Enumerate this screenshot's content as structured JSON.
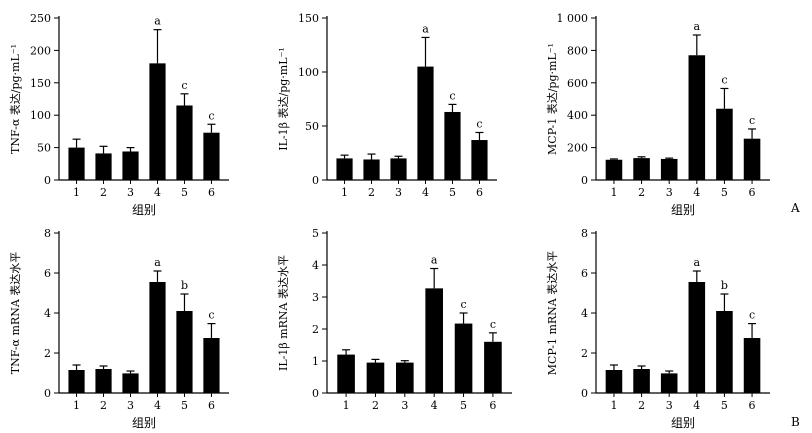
{
  "panel_labels": [
    "A",
    "B"
  ],
  "chart_data": [
    {
      "type": "bar",
      "categories": [
        "1",
        "2",
        "3",
        "4",
        "5",
        "6"
      ],
      "values": [
        50,
        41,
        44,
        180,
        115,
        73
      ],
      "errors": [
        13,
        11,
        6,
        52,
        18,
        13
      ],
      "significance": [
        "",
        "",
        "",
        "a",
        "c",
        "c"
      ],
      "ylabel": "TNF-α 表达/pg·mL⁻¹",
      "xlabel": "组别",
      "ylim": [
        0,
        250
      ],
      "yticks": [
        0,
        50,
        100,
        150,
        200,
        250
      ]
    },
    {
      "type": "bar",
      "categories": [
        "1",
        "2",
        "3",
        "4",
        "5",
        "6"
      ],
      "values": [
        20,
        19,
        20,
        105,
        63,
        37
      ],
      "errors": [
        3,
        5,
        2,
        27,
        7,
        7
      ],
      "significance": [
        "",
        "",
        "",
        "a",
        "c",
        "c"
      ],
      "ylabel": "IL-1β 表达/pg·mL⁻¹",
      "xlabel": "",
      "ylim": [
        0,
        150
      ],
      "yticks": [
        0,
        50,
        100,
        150
      ]
    },
    {
      "type": "bar",
      "categories": [
        "1",
        "2",
        "3",
        "4",
        "5",
        "6"
      ],
      "values": [
        125,
        135,
        130,
        770,
        440,
        255
      ],
      "errors": [
        5,
        8,
        5,
        125,
        125,
        60
      ],
      "significance": [
        "",
        "",
        "",
        "a",
        "c",
        "c"
      ],
      "ylabel": "MCP-1 表达/pg·mL⁻¹",
      "xlabel": "组别",
      "ylim": [
        0,
        1000
      ],
      "yticks": [
        0,
        200,
        400,
        600,
        800,
        "1 000"
      ]
    },
    {
      "type": "bar",
      "categories": [
        "1",
        "2",
        "3",
        "4",
        "5",
        "6"
      ],
      "values": [
        1.15,
        1.2,
        0.98,
        5.55,
        4.1,
        2.75
      ],
      "errors": [
        0.25,
        0.15,
        0.12,
        0.55,
        0.85,
        0.72
      ],
      "significance": [
        "",
        "",
        "",
        "a",
        "b",
        "c"
      ],
      "ylabel": "TNF-α mRNA 表达水平",
      "xlabel": "组别",
      "ylim": [
        0,
        8
      ],
      "yticks": [
        0,
        2,
        4,
        6,
        8
      ]
    },
    {
      "type": "bar",
      "categories": [
        "1",
        "2",
        "3",
        "4",
        "5",
        "6"
      ],
      "values": [
        1.2,
        0.95,
        0.95,
        3.27,
        2.17,
        1.6
      ],
      "errors": [
        0.15,
        0.1,
        0.06,
        0.62,
        0.33,
        0.28
      ],
      "significance": [
        "",
        "",
        "",
        "a",
        "c",
        "c"
      ],
      "ylabel": "IL-1β mRNA 表达水平",
      "xlabel": "",
      "ylim": [
        0,
        5
      ],
      "yticks": [
        0,
        1,
        2,
        3,
        4,
        5
      ]
    },
    {
      "type": "bar",
      "categories": [
        "1",
        "2",
        "3",
        "4",
        "5",
        "6"
      ],
      "values": [
        1.15,
        1.2,
        0.98,
        5.55,
        4.1,
        2.75
      ],
      "errors": [
        0.25,
        0.15,
        0.12,
        0.55,
        0.85,
        0.72
      ],
      "significance": [
        "",
        "",
        "",
        "a",
        "b",
        "c"
      ],
      "ylabel": "MCP-1 mRNA 表达水平",
      "xlabel": "组别",
      "ylim": [
        0,
        8
      ],
      "yticks": [
        0,
        2,
        4,
        6,
        8
      ]
    }
  ]
}
